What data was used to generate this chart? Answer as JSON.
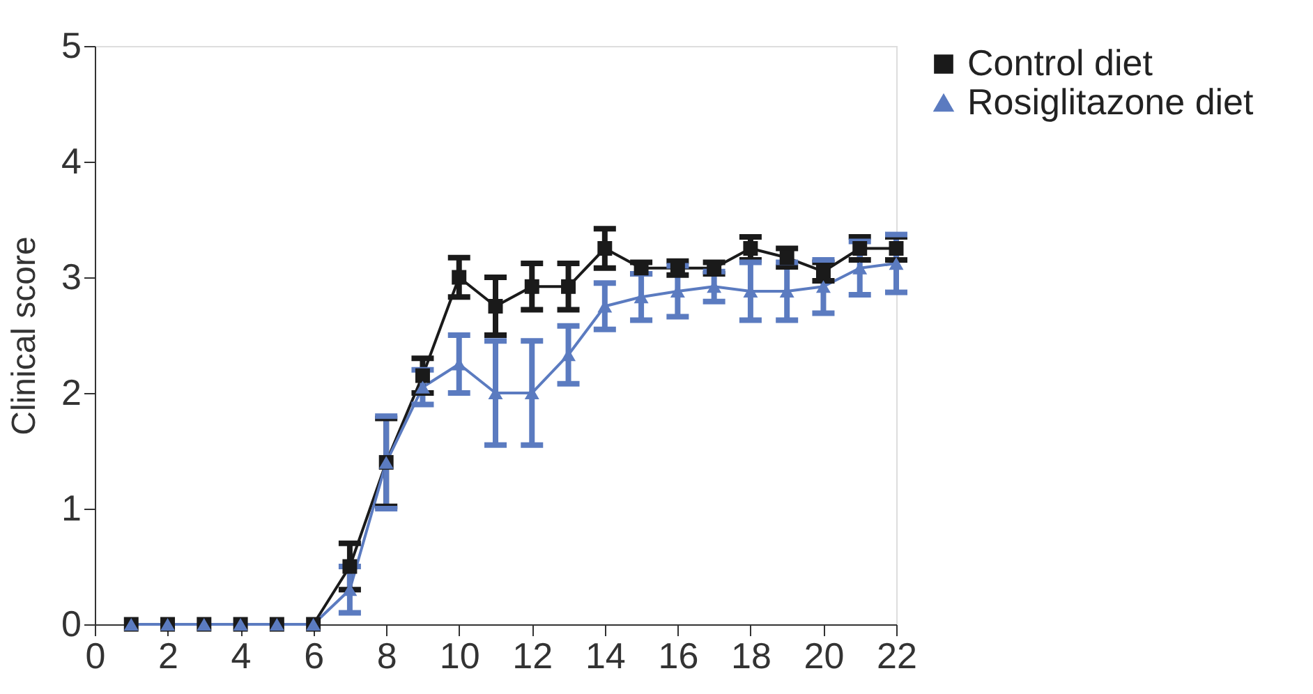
{
  "chart_data": {
    "type": "line",
    "ylabel": "Clinical score",
    "x": [
      1,
      2,
      3,
      4,
      5,
      6,
      7,
      8,
      9,
      10,
      11,
      12,
      13,
      14,
      15,
      16,
      17,
      18,
      19,
      20,
      21,
      22
    ],
    "xlim": [
      0,
      22
    ],
    "xticks": [
      0,
      2,
      4,
      6,
      8,
      10,
      12,
      14,
      16,
      18,
      20,
      22
    ],
    "ylim": [
      0,
      5
    ],
    "yticks": [
      0,
      1,
      2,
      3,
      4,
      5
    ],
    "grid": false,
    "legend": "top right",
    "line_style": "solid",
    "series": [
      {
        "name": "Control diet",
        "color": "#1a1a1a",
        "marker": "square",
        "values": [
          0,
          0,
          0,
          0,
          0,
          0,
          0.5,
          1.4,
          2.15,
          3.0,
          2.75,
          2.92,
          2.92,
          3.25,
          3.08,
          3.08,
          3.08,
          3.25,
          3.17,
          3.05,
          3.25,
          3.25
        ],
        "errors": [
          null,
          null,
          null,
          null,
          null,
          null,
          0.2,
          0.38,
          0.15,
          0.17,
          0.25,
          0.2,
          0.2,
          0.17,
          0.05,
          0.06,
          0.05,
          0.1,
          0.08,
          0.08,
          0.1,
          0.1
        ]
      },
      {
        "name": "Rosiglitazone diet",
        "color": "#5b7bc0",
        "marker": "triangle",
        "values": [
          0,
          0,
          0,
          0,
          0,
          0,
          0.3,
          1.4,
          2.05,
          2.25,
          2.0,
          2.0,
          2.33,
          2.75,
          2.83,
          2.88,
          2.92,
          2.88,
          2.88,
          2.92,
          3.08,
          3.12
        ],
        "errors": [
          null,
          null,
          null,
          null,
          null,
          null,
          0.2,
          0.4,
          0.15,
          0.25,
          0.45,
          0.45,
          0.25,
          0.2,
          0.2,
          0.22,
          0.13,
          0.25,
          0.25,
          0.23,
          0.23,
          0.25
        ]
      }
    ]
  }
}
